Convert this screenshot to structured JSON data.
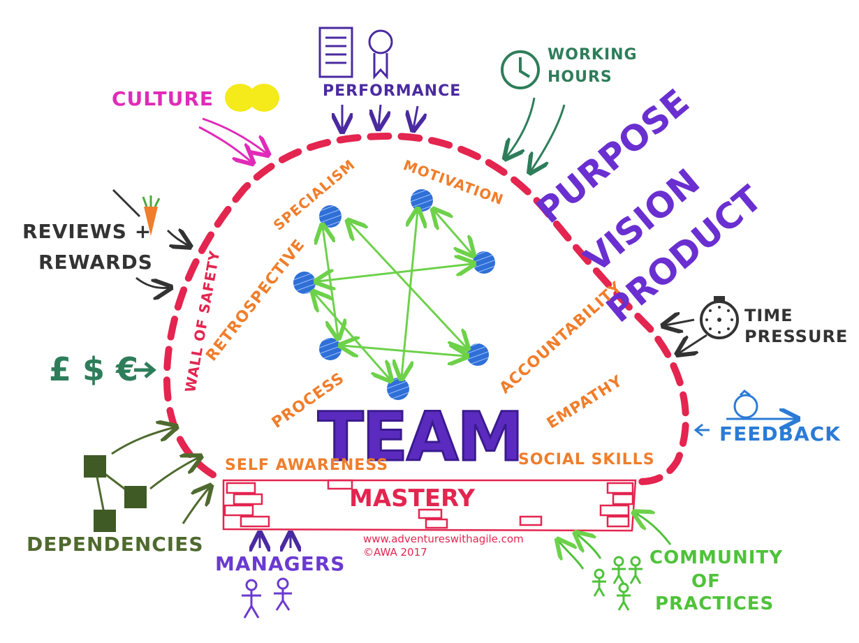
{
  "colors": {
    "wall": "#e3254f",
    "orange": "#f07d2b",
    "purple": "#5b2bbf",
    "green": "#6dd14a",
    "darkgreen": "#2e7d5a",
    "olive": "#4f6a2e",
    "blue": "#2b7bd6",
    "magenta": "#e02bb8",
    "black": "#333333",
    "yellow": "#f5ea1a"
  },
  "labels": {
    "culture": "CULTURE",
    "performance": "PERFORMANCE",
    "working_hours_1": "WORKING",
    "working_hours_2": "HOURS",
    "reviews_1": "REVIEWS +",
    "reviews_2": "REWARDS",
    "currency": "£ $ €",
    "dependencies": "DEPENDENCIES",
    "managers": "MANAGERS",
    "community_1": "COMMUNITY",
    "community_2": "OF",
    "community_3": "PRACTICES",
    "feedback": "FEEDBACK",
    "time_1": "TIME",
    "time_2": "PRESSURE",
    "purpose": "PURPOSE",
    "vision": "VISION",
    "product": "PRODUCT",
    "wall_of_safety": "WALL OF SAFETY",
    "specialism": "SPECIALISM",
    "motivation": "MOTIVATION",
    "retrospective": "RETROSPECTIVE",
    "process": "PROCESS",
    "accountability": "ACCOUNTABILITY",
    "empathy": "EMPATHY",
    "team": "TEAM",
    "self_awareness": "SELF AWARENESS",
    "social_skills": "SOCIAL SKILLS",
    "mastery": "MASTERY",
    "credit_1": "www.adventureswithagile.com",
    "credit_2": "©AWA 2017"
  }
}
